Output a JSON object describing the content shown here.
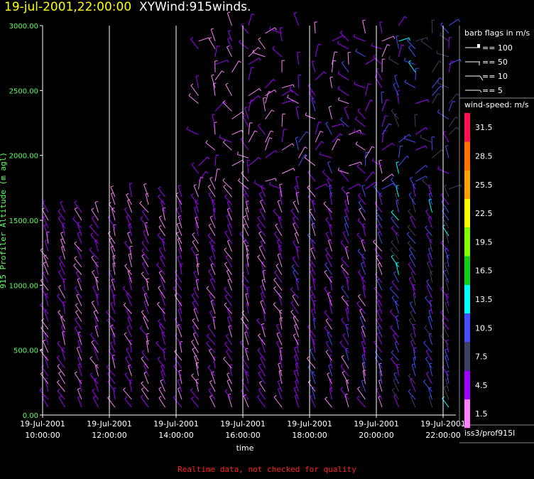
{
  "header": {
    "datetime": "19-jul-2001,22:00:00",
    "product": "XYWind:915winds."
  },
  "footer": "Realtime data, not checked for quality",
  "station": "iss3/prof915l",
  "legend": {
    "barb_title": "barb flags in m/s",
    "barb_items": [
      {
        "label": "== 100",
        "kind": "pennant"
      },
      {
        "label": "== 50",
        "kind": "pennant-half"
      },
      {
        "label": "== 10",
        "kind": "full"
      },
      {
        "label": "== 5",
        "kind": "half"
      }
    ],
    "speed_title": "wind-speed: m/s",
    "speed_scale": [
      {
        "label": "31.5",
        "color": "#ff1050"
      },
      {
        "label": "28.5",
        "color": "#ff7000"
      },
      {
        "label": "25.5",
        "color": "#ffa000"
      },
      {
        "label": "22.5",
        "color": "#ffff00"
      },
      {
        "label": "19.5",
        "color": "#80ff00"
      },
      {
        "label": "16.5",
        "color": "#10d010"
      },
      {
        "label": "13.5",
        "color": "#00ffff"
      },
      {
        "label": "10.5",
        "color": "#4050ff"
      },
      {
        "label": "7.5",
        "color": "#404060"
      },
      {
        "label": "4.5",
        "color": "#a000ff"
      },
      {
        "label": "1.5",
        "color": "#ff80ff"
      }
    ]
  },
  "chart_data": {
    "type": "scatter",
    "subtype": "wind-barbs",
    "xlabel": "time",
    "ylabel": "915 Profiler Altitude (m agl)",
    "ylim": [
      0,
      3000
    ],
    "y_ticks": [
      "0.00",
      "500.00",
      "1000.00",
      "1500.00",
      "2000.00",
      "2500.00",
      "3000.00"
    ],
    "x_ticks": [
      {
        "date": "19-Jul-2001",
        "time": "10:00:00"
      },
      {
        "date": "19-Jul-2001",
        "time": "12:00:00"
      },
      {
        "date": "19-Jul-2001",
        "time": "14:00:00"
      },
      {
        "date": "19-Jul-2001",
        "time": "16:00:00"
      },
      {
        "date": "19-Jul-2001",
        "time": "18:00:00"
      },
      {
        "date": "19-Jul-2001",
        "time": "20:00:00"
      },
      {
        "date": "19-Jul-2001",
        "time": "22:00:00"
      }
    ],
    "xlim_hours": [
      10,
      22
    ],
    "profile_times": [
      10.0,
      10.5,
      11.0,
      11.5,
      12.0,
      12.5,
      13.0,
      13.5,
      14.0,
      14.5,
      15.0,
      15.5,
      16.0,
      16.5,
      17.0,
      17.5,
      18.0,
      18.5,
      19.0,
      19.5,
      20.0,
      20.5,
      21.0,
      21.5,
      22.0
    ],
    "grid": "vertical at 2-hour ticks",
    "speed_colors": [
      "#ff80ff",
      "#a000ff",
      "#404060",
      "#4050ff",
      "#00ffff"
    ]
  }
}
